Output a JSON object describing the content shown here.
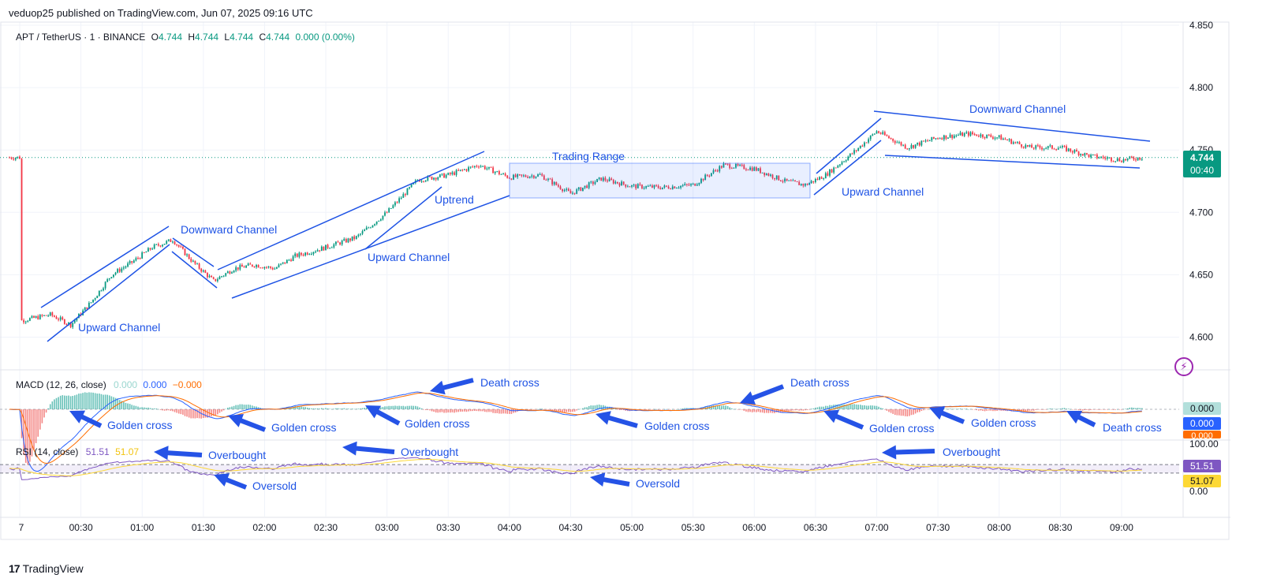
{
  "header": {
    "published": "veduop25 published on TradingView.com, Jun 07, 2025 09:16 UTC"
  },
  "symbol": {
    "title": "APT / TetherUS · 1 · BINANCE",
    "o_label": "O",
    "o": "4.744",
    "h_label": "H",
    "h": "4.744",
    "l_label": "L",
    "l": "4.744",
    "c_label": "C",
    "c": "4.744",
    "change": "0.000 (0.00%)"
  },
  "price_axis": {
    "ticks": [
      "4.850",
      "4.800",
      "4.750",
      "4.700",
      "4.650",
      "4.600"
    ],
    "last_price": "4.744",
    "countdown": "00:40"
  },
  "macd": {
    "title": "MACD (12, 26, close)",
    "v1": "0.000",
    "v2": "0.000",
    "v3": "−0.000",
    "axis_values": [
      "0.000",
      "0.000",
      "0.000"
    ]
  },
  "rsi": {
    "title": "RSI (14, close)",
    "v1": "51.51",
    "v2": "51.07",
    "axis_top": "100.00",
    "axis_bottom": "0.00",
    "tag1": "51.51",
    "tag2": "51.07"
  },
  "time_axis": [
    "7",
    "00:30",
    "01:00",
    "01:30",
    "02:00",
    "02:30",
    "03:00",
    "03:30",
    "04:00",
    "04:30",
    "05:00",
    "05:30",
    "06:00",
    "06:30",
    "07:00",
    "07:30",
    "08:00",
    "08:30",
    "09:00"
  ],
  "annotations": {
    "upward_channel_1": "Upward Channel",
    "downward_channel_1": "Downward Channel",
    "upward_channel_2": "Upward Channel",
    "uptrend": "Uptrend",
    "trading_range": "Trading Range",
    "upward_channel_3": "Upward Channel",
    "downward_channel_2": "Downward Channel",
    "macd_labels": [
      "Golden cross",
      "Golden cross",
      "Golden cross",
      "Death cross",
      "Golden cross",
      "Death cross",
      "Golden cross",
      "Golden cross",
      "Death cross"
    ],
    "rsi_labels": [
      "Overbought",
      "Oversold",
      "Overbought",
      "Oversold",
      "Overbought"
    ]
  },
  "branding": {
    "logo_text": "TradingView"
  },
  "colors": {
    "up": "#089981",
    "down": "#f23645",
    "annotation": "#1e53e5",
    "macd_line": "#2962ff",
    "signal_line": "#ff6d00",
    "rsi_line": "#7e57c2",
    "rsi_ma": "#fdd835"
  },
  "chart_data": [
    {
      "type": "candlestick",
      "title": "APT / TetherUS · 1 · BINANCE",
      "x_ticks": [
        "7",
        "00:30",
        "01:00",
        "01:30",
        "02:00",
        "02:30",
        "03:00",
        "03:30",
        "04:00",
        "04:30",
        "05:00",
        "05:30",
        "06:00",
        "06:30",
        "07:00",
        "07:30",
        "08:00",
        "08:30",
        "09:00"
      ],
      "ylim": [
        4.575,
        4.855
      ],
      "close_path": [
        [
          "00:00",
          4.613
        ],
        [
          "00:15",
          4.618
        ],
        [
          "00:25",
          4.61
        ],
        [
          "00:35",
          4.628
        ],
        [
          "00:45",
          4.65
        ],
        [
          "00:55",
          4.66
        ],
        [
          "01:05",
          4.672
        ],
        [
          "01:15",
          4.678
        ],
        [
          "01:25",
          4.66
        ],
        [
          "01:35",
          4.645
        ],
        [
          "01:45",
          4.655
        ],
        [
          "01:55",
          4.658
        ],
        [
          "02:05",
          4.655
        ],
        [
          "02:15",
          4.665
        ],
        [
          "02:30",
          4.672
        ],
        [
          "02:45",
          4.68
        ],
        [
          "03:00",
          4.7
        ],
        [
          "03:15",
          4.726
        ],
        [
          "03:30",
          4.73
        ],
        [
          "03:45",
          4.738
        ],
        [
          "04:00",
          4.728
        ],
        [
          "04:15",
          4.73
        ],
        [
          "04:30",
          4.715
        ],
        [
          "04:45",
          4.727
        ],
        [
          "05:00",
          4.721
        ],
        [
          "05:15",
          4.72
        ],
        [
          "05:30",
          4.722
        ],
        [
          "05:45",
          4.738
        ],
        [
          "06:00",
          4.735
        ],
        [
          "06:15",
          4.725
        ],
        [
          "06:25",
          4.722
        ],
        [
          "06:35",
          4.73
        ],
        [
          "06:50",
          4.75
        ],
        [
          "07:00",
          4.765
        ],
        [
          "07:15",
          4.752
        ],
        [
          "07:30",
          4.76
        ],
        [
          "07:45",
          4.763
        ],
        [
          "08:00",
          4.76
        ],
        [
          "08:15",
          4.752
        ],
        [
          "08:30",
          4.752
        ],
        [
          "08:45",
          4.745
        ],
        [
          "09:00",
          4.742
        ],
        [
          "09:10",
          4.744
        ]
      ],
      "last_price": 4.744
    },
    {
      "type": "line",
      "title": "MACD (12, 26, close)",
      "series": [
        {
          "name": "MACD",
          "values": [
            0.0,
            0.0,
            0.0
          ]
        },
        {
          "name": "Signal",
          "values": [
            0.0,
            0.0,
            0.0
          ]
        },
        {
          "name": "Histogram",
          "values": [
            -0.0,
            -0.0,
            -0.0
          ]
        }
      ]
    },
    {
      "type": "line",
      "title": "RSI (14, close)",
      "ylim": [
        0,
        100
      ],
      "series": [
        {
          "name": "RSI",
          "last": 51.51
        },
        {
          "name": "RSI-based MA",
          "last": 51.07
        }
      ]
    }
  ]
}
